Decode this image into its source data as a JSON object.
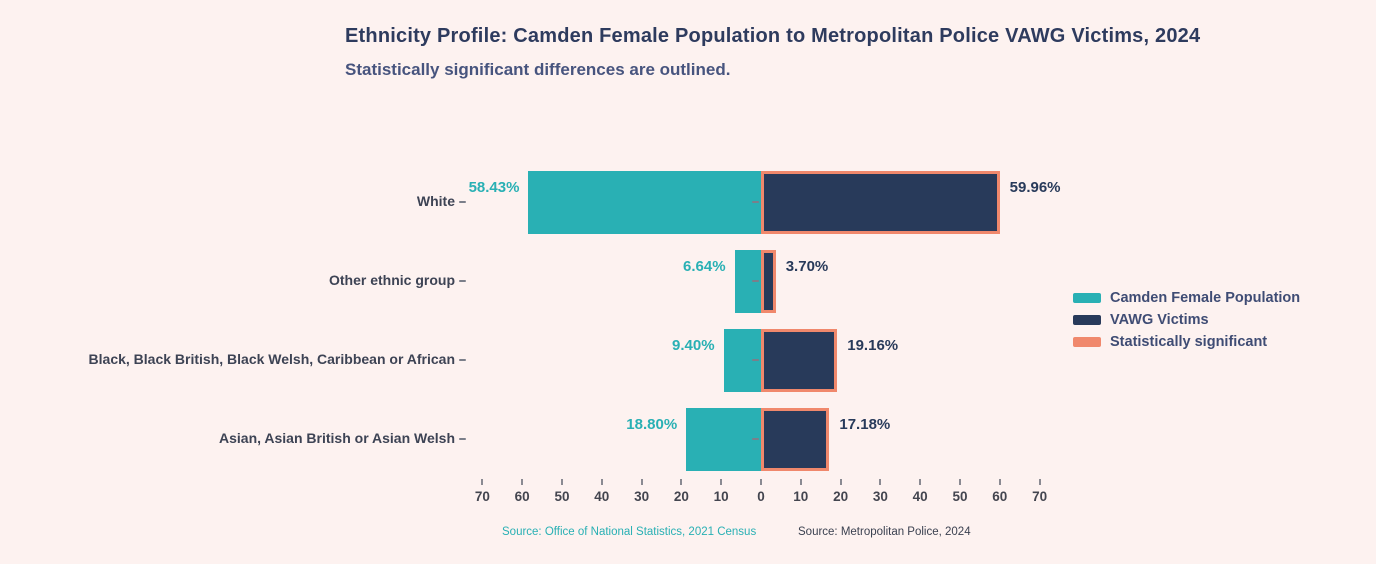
{
  "page": {
    "background": "#fdf2f0"
  },
  "header": {
    "title": "Ethnicity Profile: Camden Female Population to Metropolitan Police VAWG Victims, 2024",
    "subtitle": "Statistically significant differences are outlined.",
    "title_color": "#2e3b5e",
    "subtitle_color": "#47547e"
  },
  "chart_data": {
    "type": "diverging-bar",
    "orientation": "horizontal",
    "categories": [
      "White",
      "Other ethnic group",
      "Black, Black British, Black Welsh, Caribbean or African",
      "Asian, Asian British or Asian Welsh"
    ],
    "series": [
      {
        "name": "Camden Female Population",
        "side": "left",
        "color": "#29b0b4",
        "values": [
          58.43,
          6.64,
          9.4,
          18.8
        ],
        "labels": [
          "58.43%",
          "6.64%",
          "9.40%",
          "18.80%"
        ]
      },
      {
        "name": "VAWG Victims",
        "side": "right",
        "color": "#283a5a",
        "values": [
          59.96,
          3.7,
          19.16,
          17.18
        ],
        "labels": [
          "59.96%",
          "3.70%",
          "19.16%",
          "17.18%"
        ],
        "outlined": [
          true,
          true,
          true,
          true
        ],
        "outline_color": "#f0886c"
      }
    ],
    "x_axis": {
      "ticks": [
        70,
        60,
        50,
        40,
        30,
        20,
        10,
        0,
        10,
        20,
        30,
        40,
        50,
        60,
        70
      ],
      "max": 70,
      "tick_color": "#43454f",
      "tick_mark_color": "#8a8a92"
    },
    "category_label_color": "#3d4354",
    "legend": [
      {
        "label": "Camden Female Population",
        "color": "#29b0b4"
      },
      {
        "label": "VAWG Victims",
        "color": "#283a5a"
      },
      {
        "label": "Statistically significant",
        "color": "#f0886c"
      }
    ],
    "legend_text_color": "#3f4c74",
    "sources": [
      {
        "text": "Source: Office of National Statistics, 2021 Census",
        "color": "#29b0b4"
      },
      {
        "text": "Source: Metropolitan Police, 2024",
        "color": "#3b4150"
      }
    ]
  }
}
